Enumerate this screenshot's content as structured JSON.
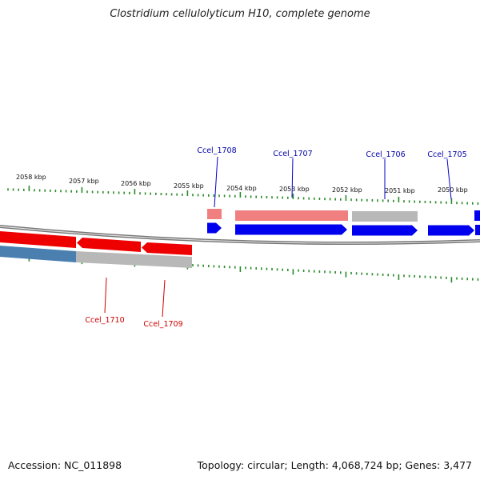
{
  "title": "Clostridium cellulolyticum H10, complete genome",
  "footer": {
    "accession": "Accession: NC_011898",
    "summary": "Topology: circular; Length: 4,068,724 bp; Genes: 3,477"
  },
  "colors": {
    "forward_cds": "#0000ee",
    "reverse_cds": "#ee0000",
    "forward_gene": "#f08080",
    "reverse_gene": "#4a7fb0",
    "pseudo": "#b8b8b8",
    "tick": "#2a8a2a",
    "backbone": "#888888"
  },
  "kbp_labels": [
    "2058 kbp",
    "2057 kbp",
    "2056 kbp",
    "2055 kbp",
    "2054 kbp",
    "2053 kbp",
    "2052 kbp",
    "2051 kbp",
    "2050 kbp"
  ],
  "gene_labels": [
    "Ccel_1708",
    "Ccel_1707",
    "Ccel_1706",
    "Ccel_1705",
    "Ccel_1710",
    "Ccel_1709"
  ]
}
